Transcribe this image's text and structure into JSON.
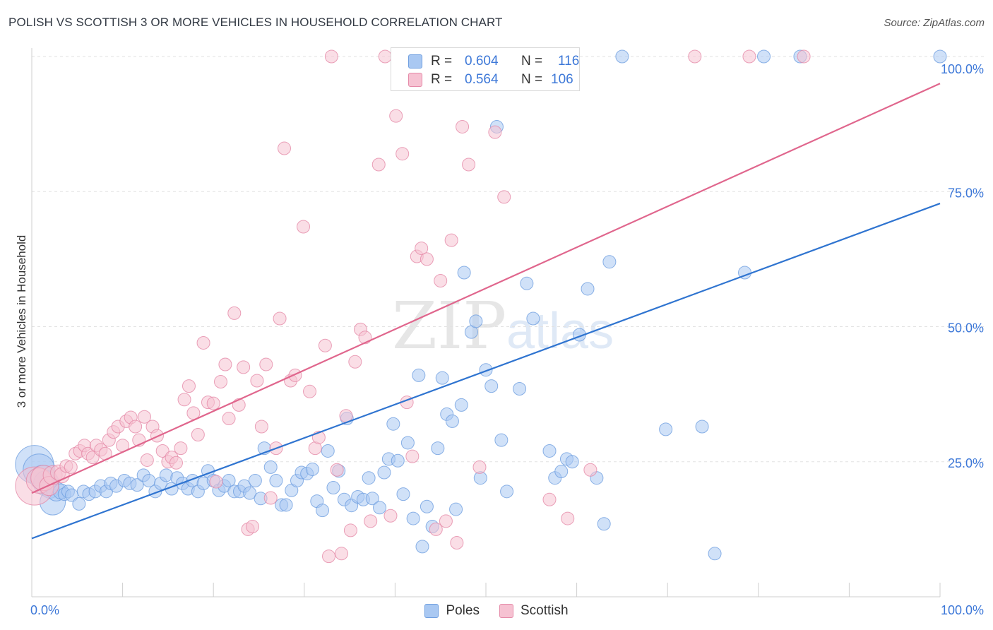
{
  "title": "POLISH VS SCOTTISH 3 OR MORE VEHICLES IN HOUSEHOLD CORRELATION CHART",
  "source": "Source: ZipAtlas.com",
  "watermark": {
    "zip": "ZIP",
    "atlas": "atlas"
  },
  "legend_top": {
    "rows": [
      {
        "r_label": "R =",
        "r_value": "0.604",
        "n_label": "N =",
        "n_value": "116",
        "color": "#a9c8f2",
        "border": "#6f9fe0"
      },
      {
        "r_label": "R =",
        "r_value": "0.564",
        "n_label": "N =",
        "n_value": "106",
        "color": "#f6c2d2",
        "border": "#e58aa8"
      }
    ]
  },
  "legend_bottom": [
    {
      "label": "Poles",
      "color": "#a9c8f2",
      "border": "#6f9fe0"
    },
    {
      "label": "Scottish",
      "color": "#f6c2d2",
      "border": "#e58aa8"
    }
  ],
  "chart_data": {
    "type": "scatter",
    "title": "POLISH VS SCOTTISH 3 OR MORE VEHICLES IN HOUSEHOLD CORRELATION CHART",
    "xlabel": "",
    "ylabel": "3 or more Vehicles in Household",
    "xlim": [
      0,
      100
    ],
    "ylim": [
      0,
      102
    ],
    "x_tick_labels": [
      "0.0%",
      "100.0%"
    ],
    "y_tick_labels": [
      "25.0%",
      "50.0%",
      "75.0%",
      "100.0%"
    ],
    "y_ticks": [
      25,
      50,
      75,
      100
    ],
    "grid": true,
    "legend_position": "top-center",
    "series": [
      {
        "name": "Poles",
        "color": "#6f9fe0",
        "fill": "#a9c8f2",
        "trend": {
          "x0": 0,
          "y0": 10.8,
          "x1": 100,
          "y1": 72.8,
          "color": "#2f74d0"
        },
        "points": [
          [
            0.3,
            24.5,
            3
          ],
          [
            0.8,
            23.5,
            2.5
          ],
          [
            1.2,
            22,
            2
          ],
          [
            1.6,
            21,
            2
          ],
          [
            2.0,
            20,
            1.5
          ],
          [
            2.3,
            17.5,
            2
          ],
          [
            2.7,
            19.5,
            1.5
          ],
          [
            3.2,
            19.5,
            1.2
          ],
          [
            3.6,
            19,
            1
          ],
          [
            4.0,
            19.5,
            1
          ],
          [
            4.4,
            18.8,
            1
          ],
          [
            5.2,
            17.2,
            1
          ],
          [
            5.7,
            19.5,
            1
          ],
          [
            6.3,
            19,
            1
          ],
          [
            7.0,
            19.5,
            1
          ],
          [
            7.6,
            20.5,
            1
          ],
          [
            8.2,
            19.5,
            1
          ],
          [
            8.7,
            21,
            1
          ],
          [
            9.3,
            20.5,
            1
          ],
          [
            10.2,
            21.5,
            1
          ],
          [
            10.8,
            21,
            1
          ],
          [
            11.6,
            20.7,
            1
          ],
          [
            12.3,
            22.5,
            1
          ],
          [
            12.9,
            21.5,
            1
          ],
          [
            13.6,
            19.5,
            1
          ],
          [
            14.2,
            21,
            1
          ],
          [
            14.8,
            22.5,
            1
          ],
          [
            15.4,
            20,
            1
          ],
          [
            16.0,
            22,
            1
          ],
          [
            16.6,
            21,
            1
          ],
          [
            17.2,
            20,
            1
          ],
          [
            17.7,
            21.5,
            1
          ],
          [
            18.3,
            19.5,
            1
          ],
          [
            18.9,
            21,
            1
          ],
          [
            19.4,
            23.3,
            1
          ],
          [
            20.0,
            21.5,
            1
          ],
          [
            20.6,
            19.7,
            1
          ],
          [
            21.2,
            20.5,
            1
          ],
          [
            21.7,
            21.5,
            1
          ],
          [
            22.3,
            19.5,
            1
          ],
          [
            22.9,
            19.5,
            1
          ],
          [
            23.4,
            20.5,
            1
          ],
          [
            24.0,
            19.2,
            1
          ],
          [
            24.6,
            21.5,
            1
          ],
          [
            25.2,
            18.2,
            1
          ],
          [
            25.6,
            27.5,
            1
          ],
          [
            26.3,
            24,
            1
          ],
          [
            26.9,
            21.5,
            1
          ],
          [
            27.5,
            17,
            1
          ],
          [
            28.0,
            17,
            1
          ],
          [
            28.6,
            19.7,
            1
          ],
          [
            29.2,
            21.5,
            1
          ],
          [
            29.7,
            23,
            1
          ],
          [
            30.3,
            22.8,
            1
          ],
          [
            30.9,
            23.6,
            1
          ],
          [
            31.4,
            17.7,
            1
          ],
          [
            32.0,
            16,
            1
          ],
          [
            32.6,
            27,
            1
          ],
          [
            33.2,
            20.2,
            1
          ],
          [
            33.8,
            23.3,
            1
          ],
          [
            34.4,
            18,
            1
          ],
          [
            34.7,
            33,
            1
          ],
          [
            35.2,
            16.9,
            1
          ],
          [
            35.9,
            18.5,
            1
          ],
          [
            36.5,
            18,
            1
          ],
          [
            37.1,
            22,
            1
          ],
          [
            37.5,
            18.2,
            1
          ],
          [
            38.3,
            16.5,
            1
          ],
          [
            38.8,
            23,
            1
          ],
          [
            39.3,
            25.5,
            1
          ],
          [
            39.8,
            32,
            1
          ],
          [
            40.3,
            25.2,
            1
          ],
          [
            40.9,
            19,
            1
          ],
          [
            41.4,
            28.5,
            1
          ],
          [
            42.0,
            14.5,
            1
          ],
          [
            42.6,
            41,
            1
          ],
          [
            43.0,
            9.3,
            1
          ],
          [
            43.5,
            16.7,
            1
          ],
          [
            44.1,
            13,
            1
          ],
          [
            44.7,
            27.5,
            1
          ],
          [
            45.2,
            40.5,
            1
          ],
          [
            45.7,
            33.8,
            1
          ],
          [
            46.3,
            32.5,
            1
          ],
          [
            46.7,
            16.2,
            1
          ],
          [
            47.3,
            35.5,
            1
          ],
          [
            47.6,
            60,
            1
          ],
          [
            48.4,
            49,
            1
          ],
          [
            48.9,
            51,
            1
          ],
          [
            49.4,
            22,
            1
          ],
          [
            50.0,
            42,
            1
          ],
          [
            50.6,
            39,
            1
          ],
          [
            51.2,
            87,
            1
          ],
          [
            51.7,
            29,
            1
          ],
          [
            52.3,
            19.5,
            1
          ],
          [
            53.0,
            100,
            1
          ],
          [
            53.7,
            38.5,
            1
          ],
          [
            54.5,
            58,
            1
          ],
          [
            55.2,
            51.5,
            1
          ],
          [
            56.0,
            100,
            1
          ],
          [
            57.0,
            27,
            1
          ],
          [
            57.6,
            22,
            1
          ],
          [
            58.3,
            23.2,
            1
          ],
          [
            58.9,
            25.5,
            1
          ],
          [
            59.5,
            25,
            1
          ],
          [
            60.3,
            48.5,
            1
          ],
          [
            61.2,
            57,
            1
          ],
          [
            62.2,
            22,
            1
          ],
          [
            63.0,
            13.5,
            1
          ],
          [
            63.6,
            62,
            1
          ],
          [
            65.0,
            100,
            1
          ],
          [
            69.8,
            31,
            1
          ],
          [
            73.8,
            31.5,
            1
          ],
          [
            75.2,
            8,
            1
          ],
          [
            78.5,
            60,
            1
          ],
          [
            80.6,
            100,
            1
          ],
          [
            84.6,
            100,
            1
          ],
          [
            100.0,
            100,
            1
          ]
        ]
      },
      {
        "name": "Scottish",
        "color": "#e58aa8",
        "fill": "#f6c2d2",
        "trend": {
          "x0": 0,
          "y0": 19.2,
          "x1": 100,
          "y1": 95.0,
          "color": "#e0668d"
        },
        "points": [
          [
            0.3,
            20.5,
            3
          ],
          [
            0.8,
            21.5,
            2
          ],
          [
            1.3,
            22,
            2
          ],
          [
            1.9,
            20.5,
            1.5
          ],
          [
            2.3,
            22.5,
            1.5
          ],
          [
            2.9,
            23,
            1.2
          ],
          [
            3.3,
            22.5,
            1.2
          ],
          [
            3.8,
            24.2,
            1
          ],
          [
            4.3,
            24,
            1
          ],
          [
            4.8,
            26.5,
            1
          ],
          [
            5.3,
            27,
            1
          ],
          [
            5.8,
            28,
            1
          ],
          [
            6.2,
            26.5,
            1
          ],
          [
            6.7,
            25.8,
            1
          ],
          [
            7.1,
            28,
            1
          ],
          [
            7.6,
            27.2,
            1
          ],
          [
            8.1,
            26.5,
            1
          ],
          [
            8.5,
            29,
            1
          ],
          [
            9.0,
            30.5,
            1
          ],
          [
            9.5,
            31.5,
            1
          ],
          [
            10.0,
            28,
            1
          ],
          [
            10.4,
            32.5,
            1
          ],
          [
            10.9,
            33.2,
            1
          ],
          [
            11.4,
            31.5,
            1
          ],
          [
            11.8,
            29,
            1
          ],
          [
            12.4,
            33.3,
            1
          ],
          [
            12.7,
            25.3,
            1
          ],
          [
            13.3,
            31.5,
            1
          ],
          [
            13.8,
            29.8,
            1
          ],
          [
            14.4,
            27,
            1
          ],
          [
            15.0,
            25,
            1
          ],
          [
            15.4,
            25.8,
            1
          ],
          [
            15.9,
            24.8,
            1
          ],
          [
            16.4,
            27.5,
            1
          ],
          [
            16.8,
            36.5,
            1
          ],
          [
            17.3,
            39,
            1
          ],
          [
            17.8,
            34,
            1
          ],
          [
            18.3,
            30,
            1
          ],
          [
            18.9,
            47,
            1
          ],
          [
            19.4,
            36,
            1
          ],
          [
            20.0,
            35.8,
            1
          ],
          [
            20.3,
            21.3,
            1
          ],
          [
            20.8,
            39.8,
            1
          ],
          [
            21.3,
            43,
            1
          ],
          [
            21.7,
            33,
            1
          ],
          [
            22.3,
            52.5,
            1
          ],
          [
            22.8,
            35.5,
            1
          ],
          [
            23.3,
            42.5,
            1
          ],
          [
            23.8,
            12.5,
            1
          ],
          [
            24.3,
            13,
            1
          ],
          [
            24.8,
            40,
            1
          ],
          [
            25.3,
            31.5,
            1
          ],
          [
            25.8,
            43,
            1
          ],
          [
            26.3,
            18.3,
            1
          ],
          [
            26.9,
            27.5,
            1
          ],
          [
            27.3,
            51.5,
            1
          ],
          [
            27.8,
            83,
            1
          ],
          [
            28.5,
            40,
            1
          ],
          [
            29.0,
            41,
            1
          ],
          [
            29.9,
            68.5,
            1
          ],
          [
            30.6,
            38,
            1
          ],
          [
            31.2,
            27.5,
            1
          ],
          [
            31.6,
            29.5,
            1
          ],
          [
            32.3,
            46.5,
            1
          ],
          [
            32.7,
            7.5,
            1
          ],
          [
            33.0,
            100,
            1
          ],
          [
            33.6,
            23.5,
            1
          ],
          [
            34.1,
            8,
            1
          ],
          [
            34.6,
            33.5,
            1
          ],
          [
            35.1,
            12.3,
            1
          ],
          [
            35.6,
            43.5,
            1
          ],
          [
            36.2,
            49.5,
            1
          ],
          [
            36.7,
            48,
            1
          ],
          [
            37.3,
            14,
            1
          ],
          [
            38.2,
            80,
            1
          ],
          [
            38.9,
            100,
            1
          ],
          [
            39.5,
            15,
            1
          ],
          [
            40.1,
            89,
            1
          ],
          [
            40.8,
            82,
            1
          ],
          [
            41.3,
            36,
            1
          ],
          [
            41.9,
            26,
            1
          ],
          [
            42.4,
            63,
            1
          ],
          [
            42.9,
            64.5,
            1
          ],
          [
            43.5,
            62.5,
            1
          ],
          [
            44.0,
            100,
            1
          ],
          [
            44.5,
            12.5,
            1
          ],
          [
            45.0,
            58.5,
            1
          ],
          [
            45.6,
            14,
            1
          ],
          [
            46.2,
            66,
            1
          ],
          [
            46.8,
            10,
            1
          ],
          [
            47.4,
            87,
            1
          ],
          [
            48.1,
            80,
            1
          ],
          [
            48.7,
            100,
            1
          ],
          [
            49.3,
            24,
            1
          ],
          [
            49.9,
            100,
            1
          ],
          [
            51.0,
            86,
            1
          ],
          [
            52.0,
            74,
            1
          ],
          [
            53.0,
            100,
            1
          ],
          [
            54.1,
            100,
            1
          ],
          [
            55.5,
            100,
            1
          ],
          [
            57.0,
            18,
            1
          ],
          [
            59.0,
            14.5,
            1
          ],
          [
            61.5,
            23.5,
            1
          ],
          [
            73.0,
            100,
            1
          ],
          [
            79.0,
            100,
            1
          ],
          [
            85.0,
            100,
            1
          ]
        ]
      }
    ]
  }
}
